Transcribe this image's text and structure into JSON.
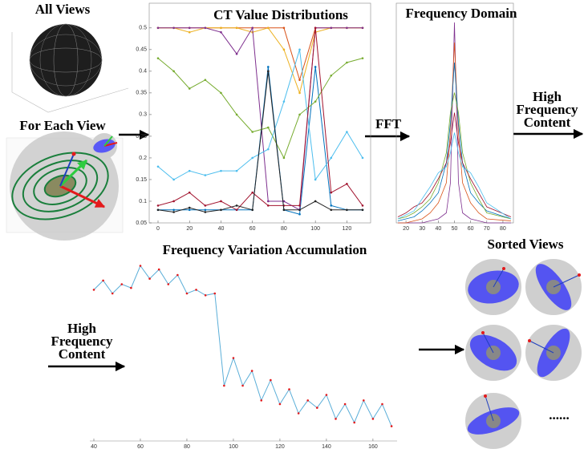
{
  "labels": {
    "all_views": "All Views",
    "for_each_view": "For Each View",
    "fft": "FFT",
    "high_frequency_content_right": "High Frequency Content",
    "high_frequency_content_left": "High Frequency Content",
    "sorted_views": "Sorted Views",
    "ellipsis": "......"
  },
  "chart_data": [
    {
      "type": "line",
      "title": "CT Value Distributions",
      "markers": true,
      "x": [
        0,
        10,
        20,
        30,
        40,
        50,
        60,
        70,
        80,
        90,
        100,
        110,
        120,
        130
      ],
      "xlim": [
        0,
        130
      ],
      "xticks": [
        0,
        20,
        40,
        60,
        80,
        100,
        120
      ],
      "ylim": [
        0.05,
        0.52
      ],
      "yticks": [
        0.05,
        0.1,
        0.15,
        0.2,
        0.25,
        0.3,
        0.35,
        0.4,
        0.45,
        0.5
      ],
      "series": [
        {
          "color": "#0072bd",
          "values": [
            0.08,
            0.08,
            0.08,
            0.08,
            0.08,
            0.08,
            0.08,
            0.41,
            0.08,
            0.07,
            0.41,
            0.09,
            0.08,
            0.08
          ]
        },
        {
          "color": "#d95319",
          "values": [
            0.5,
            0.5,
            0.5,
            0.5,
            0.5,
            0.5,
            0.5,
            0.5,
            0.5,
            0.38,
            0.5,
            0.5,
            0.5,
            0.5
          ]
        },
        {
          "color": "#edb120",
          "values": [
            0.5,
            0.5,
            0.49,
            0.5,
            0.5,
            0.5,
            0.49,
            0.5,
            0.45,
            0.35,
            0.49,
            0.5,
            0.5,
            0.5
          ]
        },
        {
          "color": "#7e2f8e",
          "values": [
            0.5,
            0.5,
            0.5,
            0.5,
            0.49,
            0.44,
            0.5,
            0.1,
            0.1,
            0.08,
            0.5,
            0.5,
            0.5,
            0.5
          ]
        },
        {
          "color": "#77ac30",
          "values": [
            0.43,
            0.4,
            0.36,
            0.38,
            0.35,
            0.3,
            0.26,
            0.27,
            0.2,
            0.3,
            0.33,
            0.39,
            0.42,
            0.43
          ]
        },
        {
          "color": "#4dbeee",
          "values": [
            0.18,
            0.15,
            0.17,
            0.16,
            0.17,
            0.17,
            0.2,
            0.22,
            0.33,
            0.45,
            0.15,
            0.2,
            0.26,
            0.2
          ]
        },
        {
          "color": "#a2142f",
          "values": [
            0.09,
            0.1,
            0.12,
            0.09,
            0.1,
            0.08,
            0.12,
            0.09,
            0.09,
            0.09,
            0.5,
            0.12,
            0.14,
            0.09
          ]
        },
        {
          "color": "#222222",
          "values": [
            0.08,
            0.075,
            0.085,
            0.075,
            0.08,
            0.09,
            0.08,
            0.4,
            0.08,
            0.08,
            0.1,
            0.08,
            0.08,
            0.08
          ]
        }
      ]
    },
    {
      "type": "line",
      "title": "Frequency Domain",
      "markers": false,
      "x": [
        15,
        20,
        25,
        30,
        35,
        40,
        45,
        47.5,
        50,
        52.5,
        55,
        60,
        65,
        70,
        85
      ],
      "xlim": [
        15,
        85
      ],
      "xticks": [
        20,
        30,
        40,
        50,
        60,
        70,
        80
      ],
      "ylim": [
        0,
        1
      ],
      "series": [
        {
          "color": "#7e2f8e",
          "values": [
            0,
            0,
            0,
            0,
            0.01,
            0.02,
            0.05,
            0.2,
            1.0,
            0.2,
            0.05,
            0.02,
            0.01,
            0,
            0
          ]
        },
        {
          "color": "#d95319",
          "values": [
            0,
            0,
            0.01,
            0.02,
            0.05,
            0.1,
            0.2,
            0.45,
            0.9,
            0.45,
            0.2,
            0.1,
            0.05,
            0.02,
            0.01
          ]
        },
        {
          "color": "#0072bd",
          "values": [
            0.01,
            0.02,
            0.03,
            0.06,
            0.1,
            0.15,
            0.3,
            0.5,
            0.8,
            0.5,
            0.3,
            0.15,
            0.1,
            0.06,
            0.02
          ]
        },
        {
          "color": "#77ac30",
          "values": [
            0.02,
            0.03,
            0.05,
            0.08,
            0.12,
            0.2,
            0.35,
            0.55,
            0.65,
            0.55,
            0.35,
            0.2,
            0.12,
            0.05,
            0.02
          ]
        },
        {
          "color": "#a2142f",
          "values": [
            0.03,
            0.05,
            0.08,
            0.1,
            0.15,
            0.22,
            0.3,
            0.4,
            0.55,
            0.4,
            0.3,
            0.22,
            0.15,
            0.08,
            0.03
          ]
        },
        {
          "color": "#4dbeee",
          "values": [
            0.02,
            0.04,
            0.06,
            0.12,
            0.18,
            0.25,
            0.28,
            0.35,
            0.45,
            0.35,
            0.28,
            0.25,
            0.18,
            0.1,
            0.02
          ]
        }
      ]
    },
    {
      "type": "line",
      "title": "Frequency Variation Accumulation",
      "markers": true,
      "marker_color": "#e41a1c",
      "x": [
        40,
        44,
        48,
        52,
        56,
        60,
        64,
        68,
        72,
        76,
        80,
        84,
        88,
        92,
        96,
        100,
        104,
        108,
        112,
        116,
        120,
        124,
        128,
        132,
        136,
        140,
        144,
        148,
        152,
        156,
        160,
        164,
        168
      ],
      "xlim": [
        40,
        169
      ],
      "xticks": [
        40,
        60,
        80,
        100,
        120,
        140,
        160
      ],
      "ylim": [
        0,
        1
      ],
      "series": [
        {
          "color": "#5aaed8",
          "values": [
            0.82,
            0.87,
            0.8,
            0.85,
            0.83,
            0.95,
            0.88,
            0.93,
            0.85,
            0.9,
            0.8,
            0.82,
            0.79,
            0.8,
            0.3,
            0.45,
            0.3,
            0.38,
            0.22,
            0.33,
            0.2,
            0.28,
            0.15,
            0.22,
            0.18,
            0.25,
            0.12,
            0.2,
            0.1,
            0.22,
            0.12,
            0.2,
            0.08
          ]
        }
      ]
    }
  ]
}
